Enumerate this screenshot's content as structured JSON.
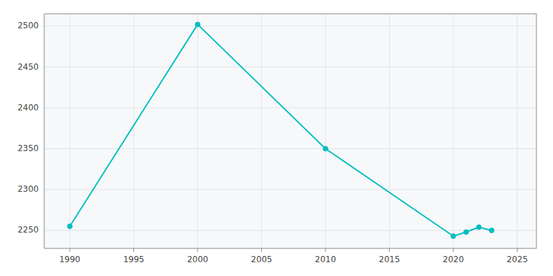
{
  "chart_data": {
    "type": "line",
    "x": [
      1990,
      2000,
      2010,
      2020,
      2021,
      2022,
      2023
    ],
    "values": [
      2255,
      2502,
      2350,
      2243,
      2248,
      2254,
      2250
    ],
    "color": "#00BFBF",
    "marker": "circle",
    "xlim": [
      1988,
      2026.5
    ],
    "ylim": [
      2228,
      2515
    ],
    "xticks": [
      1990,
      1995,
      2000,
      2005,
      2010,
      2015,
      2020,
      2025
    ],
    "yticks": [
      2250,
      2300,
      2350,
      2400,
      2450,
      2500
    ],
    "grid": true
  }
}
